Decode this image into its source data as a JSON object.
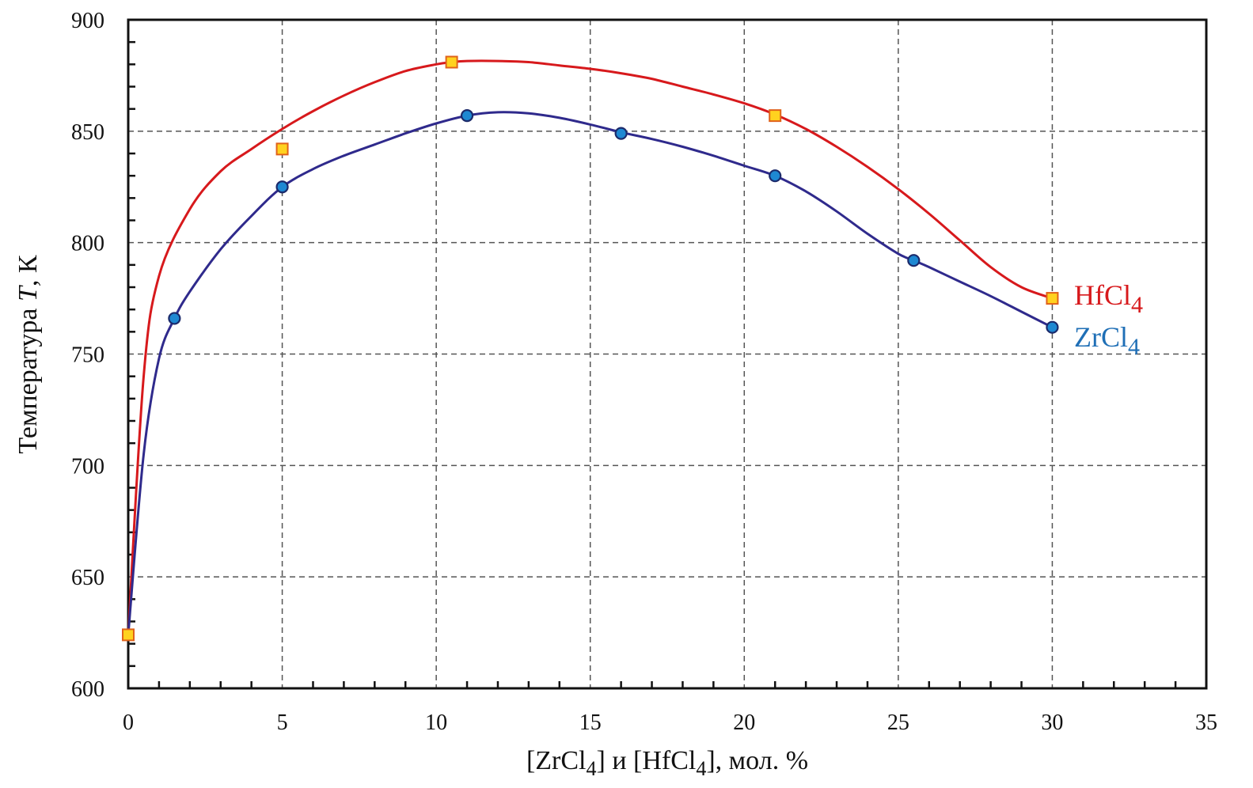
{
  "chart_data": {
    "type": "line",
    "title": "",
    "xlabel": {
      "pre": "[ZrCl",
      "sub1": "4",
      "mid": "] и [HfCl",
      "sub2": "4",
      "post": "], мол. %"
    },
    "ylabel": {
      "pre": "Температура ",
      "var": "T",
      "post": ", К"
    },
    "xlim": [
      0,
      35
    ],
    "ylim": [
      600,
      900
    ],
    "xticks": [
      "0",
      "5",
      "10",
      "15",
      "20",
      "25",
      "30",
      "35"
    ],
    "yticks": [
      "600",
      "650",
      "700",
      "750",
      "800",
      "850",
      "900"
    ],
    "grid": true,
    "legend_position": "right, beside line ends",
    "series": [
      {
        "name": "HfCl4",
        "label_base": "HfCl",
        "label_sub": "4",
        "color": "#d7191c",
        "marker": "square",
        "marker_fill": "#ffd21f",
        "marker_stroke": "#e0621a",
        "x": [
          0,
          5,
          10.5,
          21,
          30
        ],
        "y": [
          624,
          842,
          881,
          857,
          775
        ],
        "curve": [
          [
            0,
            624
          ],
          [
            0.5,
            740
          ],
          [
            1,
            785
          ],
          [
            2,
            815
          ],
          [
            3,
            832
          ],
          [
            4,
            842
          ],
          [
            5,
            851
          ],
          [
            6,
            859
          ],
          [
            7,
            866
          ],
          [
            8,
            872
          ],
          [
            9,
            877
          ],
          [
            10,
            880
          ],
          [
            10.5,
            881
          ],
          [
            11,
            881.5
          ],
          [
            12,
            881.5
          ],
          [
            13,
            881
          ],
          [
            14,
            879.5
          ],
          [
            15,
            878
          ],
          [
            16,
            876
          ],
          [
            17,
            873.5
          ],
          [
            18,
            870
          ],
          [
            19,
            866.5
          ],
          [
            20,
            862.5
          ],
          [
            21,
            857.5
          ],
          [
            22,
            851
          ],
          [
            23,
            843
          ],
          [
            24,
            834
          ],
          [
            25,
            824
          ],
          [
            26,
            813
          ],
          [
            27,
            801
          ],
          [
            28,
            789
          ],
          [
            29,
            780
          ],
          [
            30,
            775
          ]
        ]
      },
      {
        "name": "ZrCl4",
        "label_base": "ZrCl",
        "label_sub": "4",
        "color": "#2f2a8c",
        "label_color": "#1f6fb6",
        "marker": "circle",
        "marker_fill": "#1e88d2",
        "marker_stroke": "#1b2a6b",
        "x": [
          1.5,
          5,
          11,
          16,
          21,
          25.5,
          30
        ],
        "y": [
          766,
          825,
          857,
          849,
          830,
          792,
          762
        ],
        "curve": [
          [
            0,
            624
          ],
          [
            0.5,
            705
          ],
          [
            1,
            748
          ],
          [
            1.5,
            766
          ],
          [
            2,
            778
          ],
          [
            3,
            797
          ],
          [
            4,
            812
          ],
          [
            5,
            825
          ],
          [
            6,
            833
          ],
          [
            7,
            839
          ],
          [
            8,
            844
          ],
          [
            9,
            849
          ],
          [
            10,
            853.5
          ],
          [
            11,
            857
          ],
          [
            12,
            858.5
          ],
          [
            13,
            858
          ],
          [
            14,
            856
          ],
          [
            15,
            853
          ],
          [
            16,
            849.5
          ],
          [
            17,
            846.5
          ],
          [
            18,
            843
          ],
          [
            19,
            839
          ],
          [
            20,
            834.5
          ],
          [
            21,
            830
          ],
          [
            22,
            823
          ],
          [
            23,
            814
          ],
          [
            24,
            804
          ],
          [
            25,
            795
          ],
          [
            25.5,
            792
          ],
          [
            26,
            789
          ],
          [
            27,
            782.5
          ],
          [
            28,
            776
          ],
          [
            29,
            769
          ],
          [
            30,
            762
          ]
        ]
      }
    ]
  }
}
